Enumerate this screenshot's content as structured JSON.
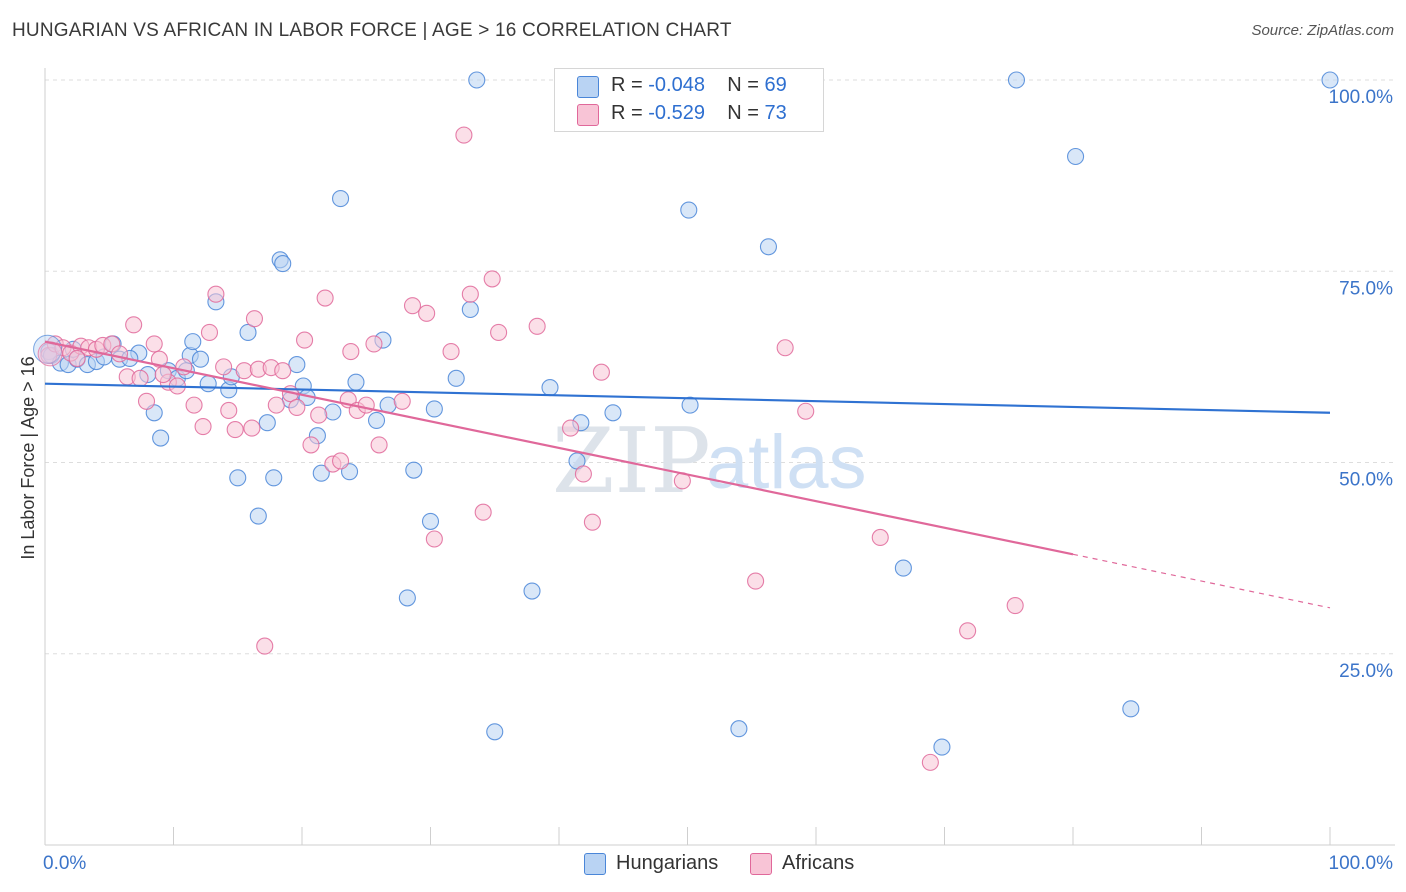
{
  "title": "HUNGARIAN VS AFRICAN IN LABOR FORCE | AGE > 16 CORRELATION CHART",
  "source": "Source: ZipAtlas.com",
  "watermark": {
    "zip": "ZIP",
    "atlas": "atlas"
  },
  "colors": {
    "hungarians": "#4a86d8",
    "hungarians_fill": "#b9d3f3",
    "africans": "#e0689a",
    "africans_fill": "#f8c4d6",
    "tick_text": "#3b74c9",
    "grid": "#dddddd"
  },
  "legend": {
    "rows": [
      {
        "r_label": "R =",
        "r_value": "-0.048",
        "n_label": "N =",
        "n_value": "69"
      },
      {
        "r_label": "R =",
        "r_value": "-0.529",
        "n_label": "N =",
        "n_value": "73"
      }
    ]
  },
  "bottom_legend": {
    "hungarians": "Hungarians",
    "africans": "Africans"
  },
  "chart_data": {
    "type": "scatter",
    "title": "HUNGARIAN VS AFRICAN IN LABOR FORCE | AGE > 16 CORRELATION CHART",
    "xlabel": "",
    "ylabel": "In Labor Force | Age > 16",
    "xlim": [
      0,
      100
    ],
    "ylim": [
      0,
      100
    ],
    "x_tick_labels": [
      "0.0%",
      "100.0%"
    ],
    "y_ticks": [
      25,
      50,
      75,
      100
    ],
    "y_tick_labels": [
      "25.0%",
      "50.0%",
      "75.0%",
      "100.0%"
    ],
    "grid": true,
    "legend_position": "top-center",
    "series": [
      {
        "name": "Hungarians",
        "color": "#4a86d8",
        "trend": {
          "x": [
            0,
            100
          ],
          "y": [
            60.3,
            56.5
          ],
          "dashed_from": null
        },
        "points": [
          [
            0.3,
            64.5
          ],
          [
            0.5,
            64
          ],
          [
            1.2,
            63
          ],
          [
            1.8,
            62.8
          ],
          [
            2.5,
            63.5
          ],
          [
            3.3,
            62.8
          ],
          [
            4,
            63.2
          ],
          [
            4.6,
            63.8
          ],
          [
            5.3,
            65.5
          ],
          [
            5.8,
            63.5
          ],
          [
            7.3,
            64.3
          ],
          [
            8,
            61.5
          ],
          [
            8.5,
            56.5
          ],
          [
            9,
            53.2
          ],
          [
            9.6,
            62
          ],
          [
            10.3,
            61
          ],
          [
            11,
            62
          ],
          [
            11.3,
            64
          ],
          [
            11.5,
            65.8
          ],
          [
            12.1,
            63.5
          ],
          [
            12.7,
            60.3
          ],
          [
            13.3,
            71
          ],
          [
            14.3,
            59.5
          ],
          [
            15,
            48
          ],
          [
            15.8,
            67
          ],
          [
            16.6,
            43
          ],
          [
            17.3,
            55.2
          ],
          [
            17.8,
            48
          ],
          [
            18.3,
            76.5
          ],
          [
            18.5,
            76
          ],
          [
            19.1,
            58.2
          ],
          [
            19.6,
            62.8
          ],
          [
            20.1,
            60
          ],
          [
            20.4,
            58.5
          ],
          [
            21.2,
            53.5
          ],
          [
            21.5,
            48.6
          ],
          [
            22.4,
            56.6
          ],
          [
            23,
            84.5
          ],
          [
            23.7,
            48.8
          ],
          [
            24.2,
            60.5
          ],
          [
            25.8,
            55.5
          ],
          [
            26.3,
            66
          ],
          [
            28.2,
            32.3
          ],
          [
            28.7,
            49
          ],
          [
            30,
            42.3
          ],
          [
            30.3,
            57
          ],
          [
            32,
            61
          ],
          [
            33.1,
            70
          ],
          [
            33.6,
            100
          ],
          [
            35,
            14.8
          ],
          [
            37.9,
            33.2
          ],
          [
            39.3,
            59.8
          ],
          [
            41.4,
            50.2
          ],
          [
            41.7,
            55.2
          ],
          [
            44.2,
            56.5
          ],
          [
            50.1,
            83
          ],
          [
            50.2,
            57.5
          ],
          [
            54,
            15.2
          ],
          [
            56.3,
            78.2
          ],
          [
            66.8,
            36.2
          ],
          [
            69.8,
            12.8
          ],
          [
            75.6,
            100
          ],
          [
            80.2,
            90
          ],
          [
            84.5,
            17.8
          ],
          [
            100,
            100
          ],
          [
            6.6,
            63.6
          ],
          [
            2.2,
            64.8
          ],
          [
            14.5,
            61.2
          ],
          [
            26.7,
            57.5
          ]
        ]
      },
      {
        "name": "Africans",
        "color": "#e0689a",
        "trend": {
          "x": [
            0,
            80,
            100
          ],
          "y": [
            65.8,
            38,
            31
          ],
          "dashed_from": 80
        },
        "points": [
          [
            0.3,
            64
          ],
          [
            0.8,
            65.5
          ],
          [
            1.4,
            65
          ],
          [
            2,
            64.3
          ],
          [
            2.8,
            65.2
          ],
          [
            3.4,
            65
          ],
          [
            4,
            64.8
          ],
          [
            4.5,
            65.3
          ],
          [
            5.2,
            65.5
          ],
          [
            5.8,
            64.2
          ],
          [
            6.4,
            61.2
          ],
          [
            6.9,
            68
          ],
          [
            7.4,
            61
          ],
          [
            7.9,
            58
          ],
          [
            8.5,
            65.5
          ],
          [
            8.9,
            63.5
          ],
          [
            9.6,
            60.5
          ],
          [
            10.3,
            60
          ],
          [
            10.8,
            62.5
          ],
          [
            11.6,
            57.5
          ],
          [
            12.3,
            54.7
          ],
          [
            12.8,
            67
          ],
          [
            13.3,
            72
          ],
          [
            13.9,
            62.5
          ],
          [
            14.3,
            56.8
          ],
          [
            14.8,
            54.3
          ],
          [
            15.5,
            62
          ],
          [
            16.1,
            54.5
          ],
          [
            16.3,
            68.8
          ],
          [
            16.6,
            62.2
          ],
          [
            17.1,
            26
          ],
          [
            17.6,
            62.4
          ],
          [
            18,
            57.5
          ],
          [
            18.5,
            62
          ],
          [
            19.1,
            59
          ],
          [
            19.6,
            57.2
          ],
          [
            20.2,
            66
          ],
          [
            20.7,
            52.3
          ],
          [
            21.3,
            56.2
          ],
          [
            21.8,
            71.5
          ],
          [
            22.4,
            49.8
          ],
          [
            23,
            50.2
          ],
          [
            23.6,
            58.2
          ],
          [
            23.8,
            64.5
          ],
          [
            24.3,
            56.8
          ],
          [
            25,
            57.5
          ],
          [
            25.6,
            65.5
          ],
          [
            26,
            52.3
          ],
          [
            28.6,
            70.5
          ],
          [
            29.7,
            69.5
          ],
          [
            30.3,
            40
          ],
          [
            31.6,
            64.5
          ],
          [
            32.6,
            92.8
          ],
          [
            33.1,
            72
          ],
          [
            34.1,
            43.5
          ],
          [
            34.8,
            74
          ],
          [
            35.3,
            67
          ],
          [
            38.3,
            67.8
          ],
          [
            40.9,
            54.5
          ],
          [
            41.9,
            48.5
          ],
          [
            42.6,
            42.2
          ],
          [
            43.3,
            61.8
          ],
          [
            49.6,
            47.6
          ],
          [
            55.3,
            34.5
          ],
          [
            57.6,
            65
          ],
          [
            59.2,
            56.7
          ],
          [
            65,
            40.2
          ],
          [
            68.9,
            10.8
          ],
          [
            71.8,
            28
          ],
          [
            75.5,
            31.3
          ],
          [
            2.5,
            63.6
          ],
          [
            9.2,
            61.5
          ],
          [
            27.8,
            58
          ]
        ]
      }
    ]
  }
}
